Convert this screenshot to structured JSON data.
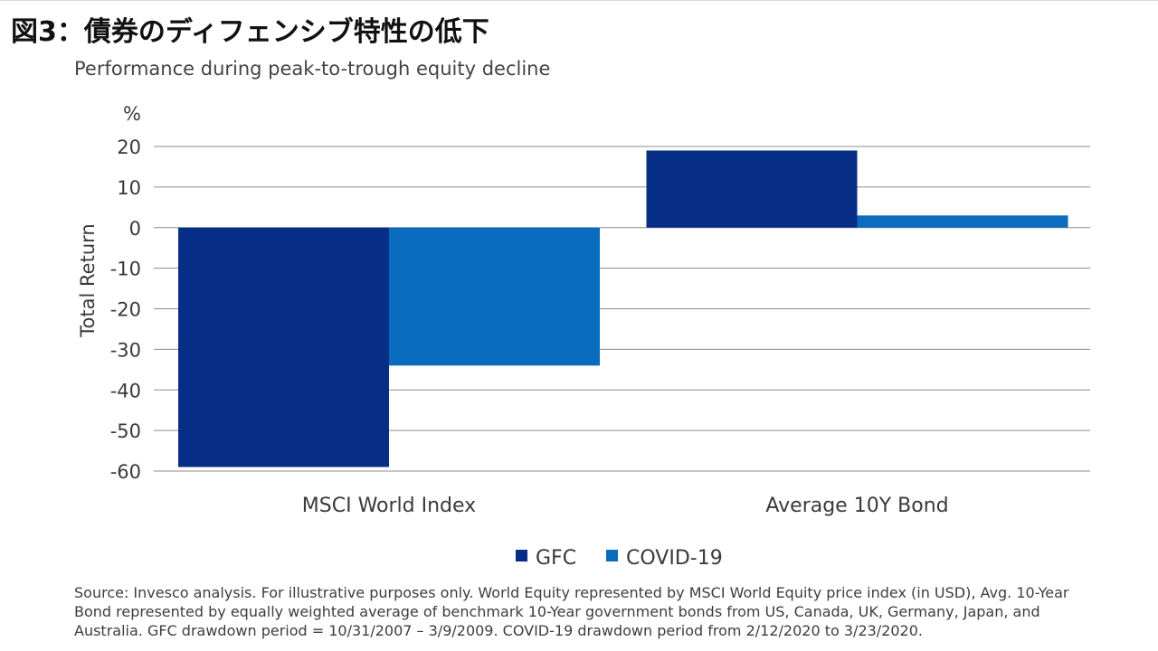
{
  "figure_title": "図3：債券のディフェンシブ特性の低下",
  "chart_data": {
    "type": "bar",
    "title": "Performance during peak-to-trough equity decline",
    "unit_label": "%",
    "ylabel": "Total Return",
    "xlabel": "",
    "ylim": [
      -60,
      20
    ],
    "yticks": [
      20,
      10,
      0,
      -10,
      -20,
      -30,
      -40,
      -50,
      -60
    ],
    "grid": true,
    "legend_position": "bottom-center",
    "categories": [
      "MSCI World Index",
      "Average 10Y Bond"
    ],
    "series": [
      {
        "name": "GFC",
        "color": "#062e86",
        "values": [
          -59,
          19
        ]
      },
      {
        "name": "COVID-19",
        "color": "#0a6cbf",
        "values": [
          -34,
          3
        ]
      }
    ]
  },
  "source_note": "Source: Invesco analysis. For illustrative purposes only. World Equity represented by MSCI World Equity price index (in USD), Avg. 10-Year Bond represented by equally weighted average of benchmark 10-Year government bonds from US, Canada, UK, Germany, Japan, and Australia. GFC drawdown period = 10/31/2007 – 3/9/2009. COVID-19 drawdown period from 2/12/2020 to 3/23/2020."
}
